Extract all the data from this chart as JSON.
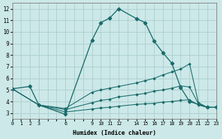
{
  "xlabel": "Humidex (Indice chaleur)",
  "background_color": "#cce8e8",
  "grid_color": "#aacccc",
  "line_color": "#1a6b6b",
  "xlim": [
    0,
    23
  ],
  "ylim": [
    2.5,
    12.5
  ],
  "xticks": [
    0,
    1,
    2,
    3,
    6,
    9,
    10,
    11,
    12,
    14,
    15,
    16,
    17,
    18,
    19,
    20,
    21,
    22,
    23
  ],
  "yticks": [
    3,
    4,
    5,
    6,
    7,
    8,
    9,
    10,
    11,
    12
  ],
  "lines": [
    {
      "x": [
        0,
        2,
        3,
        6,
        9,
        10,
        11,
        12,
        14,
        15,
        16,
        17,
        18,
        19,
        20,
        22,
        23
      ],
      "y": [
        5.1,
        5.3,
        3.7,
        2.9,
        9.3,
        10.8,
        11.2,
        12.0,
        11.15,
        10.8,
        9.2,
        8.2,
        7.3,
        5.2,
        4.0,
        3.5,
        3.5
      ],
      "markersize": 2.5,
      "linewidth": 1.0
    },
    {
      "x": [
        0,
        3,
        6,
        9,
        10,
        11,
        12,
        14,
        15,
        16,
        17,
        18,
        19,
        20,
        21,
        22,
        23
      ],
      "y": [
        5.1,
        3.7,
        3.4,
        4.8,
        5.0,
        5.15,
        5.3,
        5.6,
        5.8,
        6.0,
        6.3,
        6.55,
        6.8,
        7.25,
        3.9,
        3.5,
        3.5
      ],
      "markersize": 1.5,
      "linewidth": 0.8
    },
    {
      "x": [
        0,
        3,
        6,
        9,
        10,
        11,
        12,
        14,
        15,
        16,
        17,
        18,
        19,
        20,
        21,
        22,
        23
      ],
      "y": [
        5.1,
        3.7,
        3.3,
        3.9,
        4.1,
        4.2,
        4.4,
        4.6,
        4.7,
        4.9,
        5.0,
        5.15,
        5.35,
        5.25,
        3.8,
        3.5,
        3.5
      ],
      "markersize": 1.5,
      "linewidth": 0.8
    },
    {
      "x": [
        0,
        3,
        6,
        9,
        10,
        11,
        12,
        14,
        15,
        16,
        17,
        18,
        19,
        20,
        21,
        22,
        23
      ],
      "y": [
        5.1,
        3.7,
        3.1,
        3.35,
        3.45,
        3.5,
        3.6,
        3.75,
        3.8,
        3.85,
        3.95,
        4.0,
        4.1,
        4.15,
        3.7,
        3.5,
        3.5
      ],
      "markersize": 1.5,
      "linewidth": 0.8
    }
  ]
}
